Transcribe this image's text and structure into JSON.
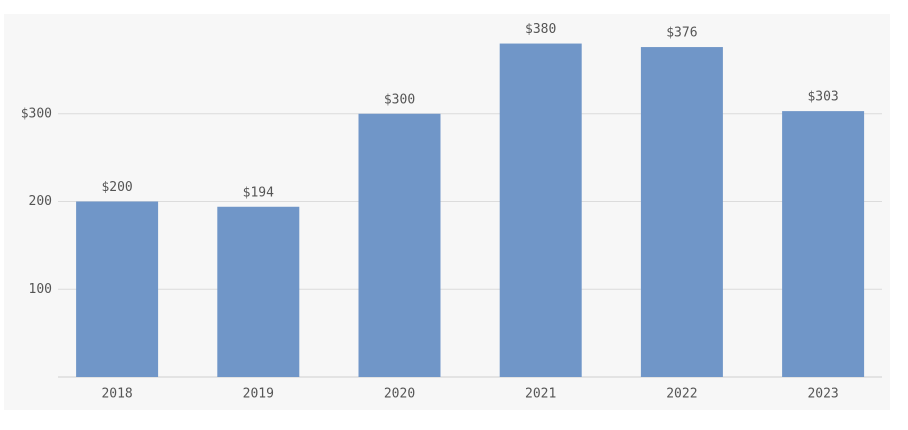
{
  "chart_data": {
    "type": "bar",
    "categories": [
      "2018",
      "2019",
      "2020",
      "2021",
      "2022",
      "2023"
    ],
    "values": [
      200,
      194,
      300,
      380,
      376,
      303
    ],
    "value_labels": [
      "$200",
      "$194",
      "$300",
      "$380",
      "$376",
      "$303"
    ],
    "color": "#7096c8",
    "ylim": [
      0,
      400
    ],
    "yticks": [
      100,
      200,
      {
        "value": 300,
        "label": "$300"
      }
    ],
    "grid": true
  }
}
